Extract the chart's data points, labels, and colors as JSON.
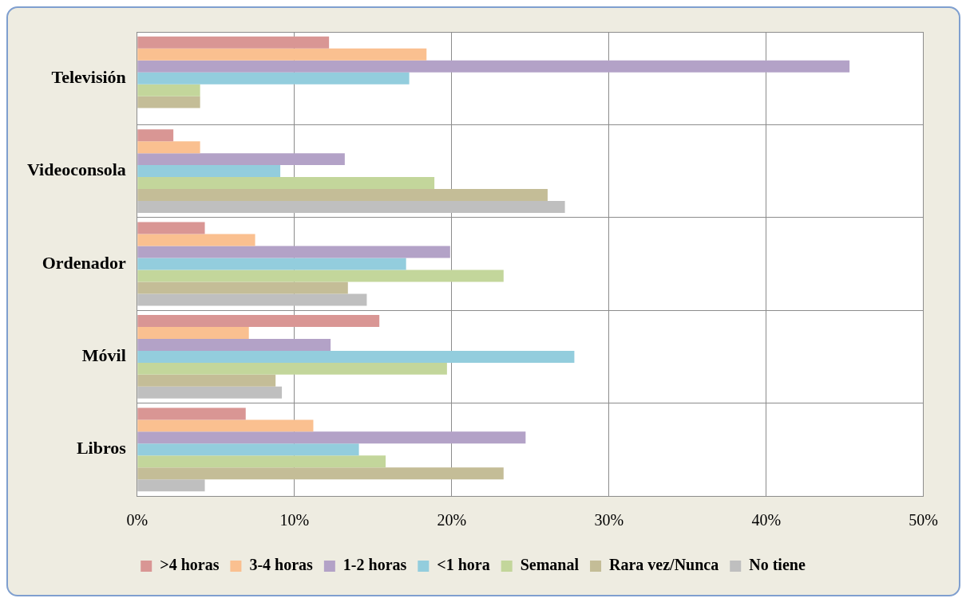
{
  "chart_data": {
    "type": "bar",
    "orientation": "horizontal",
    "categories": [
      "Televisión",
      "Videoconsola",
      "Ordenador",
      "Móvil",
      "Libros"
    ],
    "series": [
      {
        "name": ">4 horas",
        "color": "#d99694",
        "values": [
          12.2,
          2.3,
          4.3,
          15.4,
          6.9
        ]
      },
      {
        "name": "3-4 horas",
        "color": "#fac090",
        "values": [
          18.4,
          4.0,
          7.5,
          7.1,
          11.2
        ]
      },
      {
        "name": "1-2 horas",
        "color": "#b3a2c7",
        "values": [
          45.3,
          13.2,
          19.9,
          12.3,
          24.7
        ]
      },
      {
        "name": "<1 hora",
        "color": "#93cddd",
        "values": [
          17.3,
          9.1,
          17.1,
          27.8,
          14.1
        ]
      },
      {
        "name": "Semanal",
        "color": "#c3d69b",
        "values": [
          4.0,
          18.9,
          23.3,
          19.7,
          15.8
        ]
      },
      {
        "name": "Rara vez/Nunca",
        "color": "#c4bd97",
        "values": [
          4.0,
          26.1,
          13.4,
          8.8,
          23.3
        ]
      },
      {
        "name": "No tiene",
        "color": "#bfbfbf",
        "values": [
          null,
          27.2,
          14.6,
          9.2,
          4.3
        ]
      }
    ],
    "xlim": [
      0,
      50
    ],
    "xticks": [
      {
        "value": 0,
        "label": "0%"
      },
      {
        "value": 10,
        "label": "10%"
      },
      {
        "value": 20,
        "label": "20%"
      },
      {
        "value": 30,
        "label": "30%"
      },
      {
        "value": 40,
        "label": "40%"
      },
      {
        "value": 50,
        "label": "50%"
      }
    ],
    "grid": true,
    "legend": "bottom"
  }
}
